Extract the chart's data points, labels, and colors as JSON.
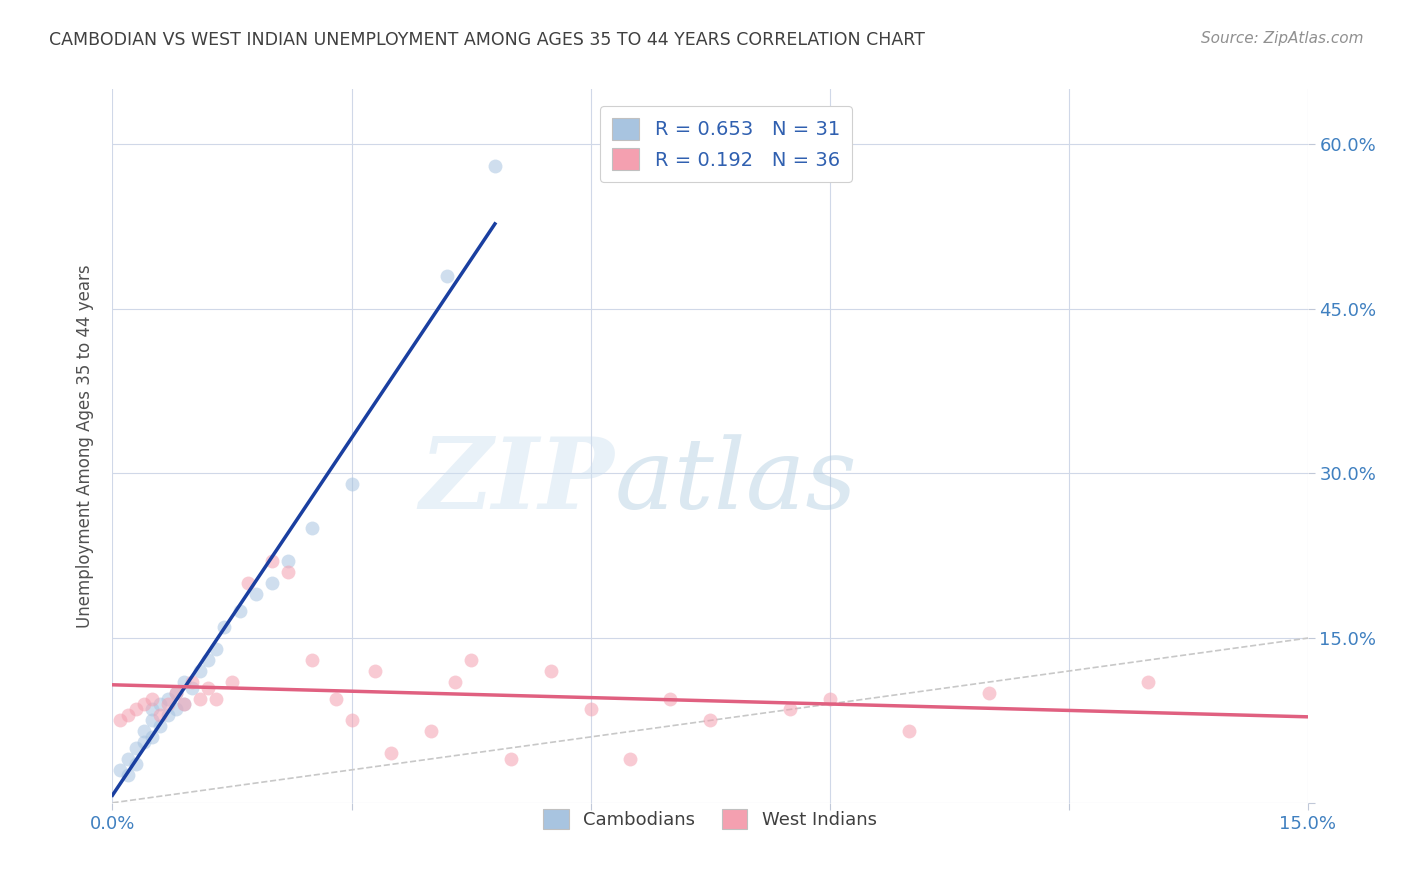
{
  "title": "CAMBODIAN VS WEST INDIAN UNEMPLOYMENT AMONG AGES 35 TO 44 YEARS CORRELATION CHART",
  "source": "Source: ZipAtlas.com",
  "ylabel": "Unemployment Among Ages 35 to 44 years",
  "xlim": [
    0.0,
    0.15
  ],
  "ylim": [
    0.0,
    0.65
  ],
  "xticks": [
    0.0,
    0.03,
    0.06,
    0.09,
    0.12,
    0.15
  ],
  "xticklabels": [
    "0.0%",
    "",
    "",
    "",
    "",
    "15.0%"
  ],
  "yticks": [
    0.0,
    0.15,
    0.3,
    0.45,
    0.6
  ],
  "right_yticklabels": [
    "",
    "15.0%",
    "30.0%",
    "45.0%",
    "60.0%"
  ],
  "cambodian_color": "#a8c4e0",
  "west_indian_color": "#f4a0b0",
  "cambodian_line_color": "#1a3fa0",
  "west_indian_line_color": "#e06080",
  "diagonal_color": "#c8c8c8",
  "watermark_zip": "ZIP",
  "watermark_atlas": "atlas",
  "legend_label_cam": "R = 0.653   N = 31",
  "legend_label_wi": "R = 0.192   N = 36",
  "bottom_legend_cam": "Cambodians",
  "bottom_legend_wi": "West Indians",
  "cambodian_x": [
    0.001,
    0.002,
    0.002,
    0.003,
    0.003,
    0.004,
    0.004,
    0.005,
    0.005,
    0.005,
    0.006,
    0.006,
    0.007,
    0.007,
    0.008,
    0.008,
    0.009,
    0.009,
    0.01,
    0.011,
    0.012,
    0.013,
    0.014,
    0.016,
    0.018,
    0.02,
    0.022,
    0.025,
    0.03,
    0.042,
    0.048
  ],
  "cambodian_y": [
    0.03,
    0.025,
    0.04,
    0.035,
    0.05,
    0.055,
    0.065,
    0.06,
    0.075,
    0.085,
    0.07,
    0.09,
    0.08,
    0.095,
    0.085,
    0.1,
    0.09,
    0.11,
    0.105,
    0.12,
    0.13,
    0.14,
    0.16,
    0.175,
    0.19,
    0.2,
    0.22,
    0.25,
    0.29,
    0.48,
    0.58
  ],
  "west_indian_x": [
    0.001,
    0.002,
    0.003,
    0.004,
    0.005,
    0.006,
    0.007,
    0.008,
    0.009,
    0.01,
    0.011,
    0.012,
    0.013,
    0.015,
    0.017,
    0.02,
    0.022,
    0.025,
    0.028,
    0.03,
    0.033,
    0.035,
    0.04,
    0.043,
    0.045,
    0.05,
    0.055,
    0.06,
    0.065,
    0.07,
    0.075,
    0.085,
    0.09,
    0.1,
    0.11,
    0.13
  ],
  "west_indian_y": [
    0.075,
    0.08,
    0.085,
    0.09,
    0.095,
    0.08,
    0.09,
    0.1,
    0.09,
    0.11,
    0.095,
    0.105,
    0.095,
    0.11,
    0.2,
    0.22,
    0.21,
    0.13,
    0.095,
    0.075,
    0.12,
    0.045,
    0.065,
    0.11,
    0.13,
    0.04,
    0.12,
    0.085,
    0.04,
    0.095,
    0.075,
    0.085,
    0.095,
    0.065,
    0.1,
    0.11
  ],
  "background_color": "#ffffff",
  "grid_color": "#d0d8e8",
  "title_color": "#404040",
  "axis_label_color": "#4080c0",
  "marker_size": 100,
  "marker_alpha": 0.55
}
